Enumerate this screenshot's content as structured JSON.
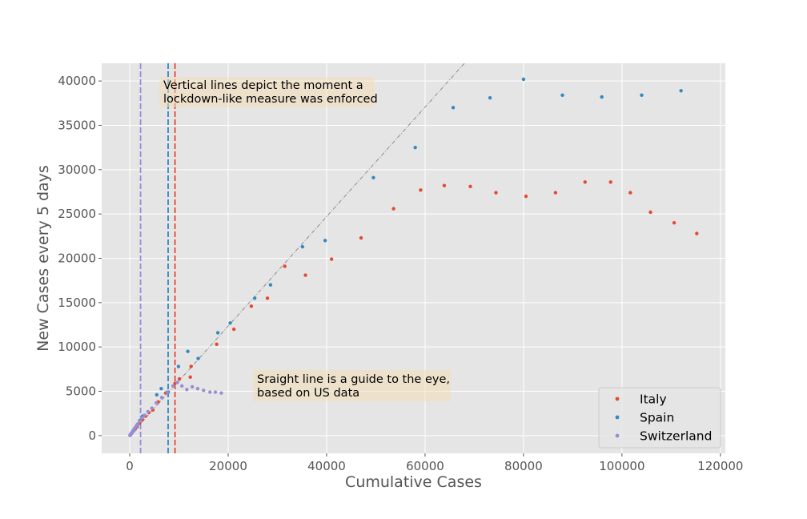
{
  "chart_data": {
    "type": "scatter",
    "xlabel": "Cumulative Cases",
    "ylabel": "New Cases every 5 days",
    "xlim": [
      -5700,
      121000
    ],
    "ylim": [
      -2000,
      42000
    ],
    "x_ticks": [
      0,
      20000,
      40000,
      60000,
      80000,
      100000,
      120000
    ],
    "y_ticks": [
      0,
      5000,
      10000,
      15000,
      20000,
      25000,
      30000,
      35000,
      40000
    ],
    "grid": true,
    "legend_position": "lower right",
    "series": [
      {
        "name": "Italy",
        "color": "#E24A33",
        "lockdown_x": 9200,
        "points": [
          [
            100,
            60
          ],
          [
            200,
            150
          ],
          [
            350,
            250
          ],
          [
            550,
            400
          ],
          [
            800,
            550
          ],
          [
            1100,
            750
          ],
          [
            1500,
            1000
          ],
          [
            2000,
            1400
          ],
          [
            2600,
            1800
          ],
          [
            3200,
            2200
          ],
          [
            3900,
            2600
          ],
          [
            4700,
            2900
          ],
          [
            5800,
            3800
          ],
          [
            7300,
            4800
          ],
          [
            9200,
            5900
          ],
          [
            10100,
            6400
          ],
          [
            12460,
            7800
          ],
          [
            12300,
            6600
          ],
          [
            17660,
            10300
          ],
          [
            21160,
            12000
          ],
          [
            24700,
            14600
          ],
          [
            27980,
            15500
          ],
          [
            31500,
            19100
          ],
          [
            35700,
            18100
          ],
          [
            41000,
            19900
          ],
          [
            47000,
            22300
          ],
          [
            53600,
            25600
          ],
          [
            59100,
            27700
          ],
          [
            63900,
            28200
          ],
          [
            69200,
            28100
          ],
          [
            74400,
            27400
          ],
          [
            80500,
            27000
          ],
          [
            86500,
            27400
          ],
          [
            92500,
            28600
          ],
          [
            97700,
            28600
          ],
          [
            101700,
            27400
          ],
          [
            105800,
            25200
          ],
          [
            110600,
            24000
          ],
          [
            115200,
            22800
          ]
        ]
      },
      {
        "name": "Spain",
        "color": "#348ABD",
        "lockdown_x": 7800,
        "points": [
          [
            100,
            50
          ],
          [
            300,
            200
          ],
          [
            500,
            350
          ],
          [
            800,
            600
          ],
          [
            1100,
            850
          ],
          [
            1500,
            1200
          ],
          [
            2000,
            1700
          ],
          [
            2600,
            2200
          ],
          [
            5500,
            4600
          ],
          [
            6400,
            5300
          ],
          [
            7800,
            4900
          ],
          [
            9900,
            7800
          ],
          [
            11800,
            9500
          ],
          [
            13900,
            8700
          ],
          [
            17900,
            11600
          ],
          [
            20400,
            12700
          ],
          [
            25400,
            15500
          ],
          [
            28600,
            17000
          ],
          [
            35100,
            21300
          ],
          [
            39700,
            22000
          ],
          [
            49500,
            29100
          ],
          [
            58000,
            32500
          ],
          [
            65700,
            37000
          ],
          [
            73200,
            38100
          ],
          [
            80000,
            40200
          ],
          [
            87900,
            38400
          ],
          [
            95900,
            38200
          ],
          [
            104000,
            38400
          ],
          [
            112000,
            38900
          ]
        ]
      },
      {
        "name": "Switzerland",
        "color": "#988ED5",
        "lockdown_x": 2200,
        "points": [
          [
            50,
            20
          ],
          [
            100,
            80
          ],
          [
            200,
            150
          ],
          [
            300,
            250
          ],
          [
            450,
            350
          ],
          [
            600,
            500
          ],
          [
            800,
            650
          ],
          [
            1000,
            850
          ],
          [
            1300,
            1050
          ],
          [
            1600,
            1300
          ],
          [
            2000,
            1650
          ],
          [
            2500,
            2000
          ],
          [
            3000,
            2300
          ],
          [
            3700,
            2700
          ],
          [
            4500,
            3100
          ],
          [
            5400,
            3700
          ],
          [
            6500,
            4300
          ],
          [
            7600,
            4900
          ],
          [
            8800,
            5600
          ],
          [
            9700,
            6000
          ],
          [
            10600,
            5600
          ],
          [
            11600,
            5200
          ],
          [
            12700,
            5500
          ],
          [
            13800,
            5300
          ],
          [
            15000,
            5100
          ],
          [
            16300,
            4900
          ],
          [
            17400,
            4900
          ],
          [
            18600,
            4800
          ]
        ]
      }
    ],
    "guide_line": {
      "points": [
        [
          0,
          0
        ],
        [
          68000,
          42000
        ]
      ]
    },
    "annotations": [
      "Vertical lines depict the moment a\nlockdown-like measure was enforced",
      "Sraight line is a guide to the eye,\nbased on US data"
    ]
  }
}
